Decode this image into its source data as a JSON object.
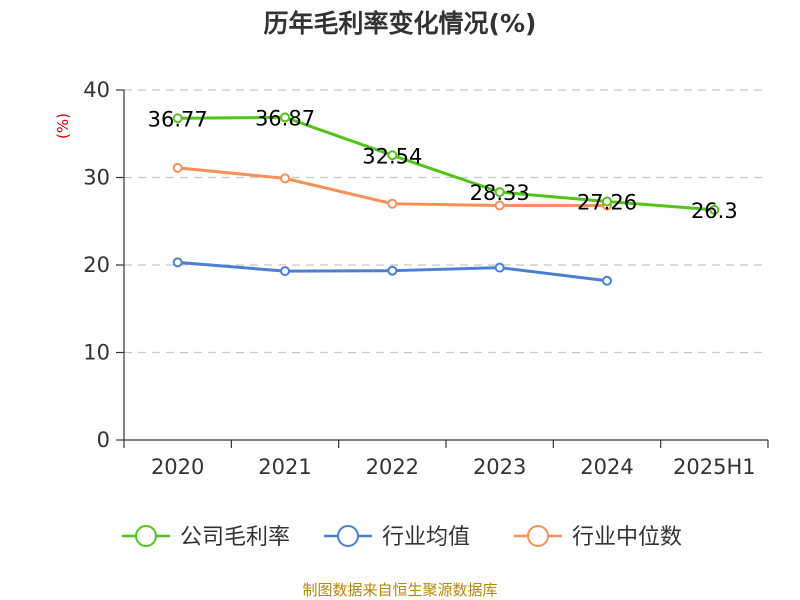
{
  "chart_data": {
    "type": "line",
    "title": "历年毛利率变化情况(%)",
    "ylabel": "(%)",
    "xlabel": "",
    "categories": [
      "2020",
      "2021",
      "2022",
      "2023",
      "2024",
      "2025H1"
    ],
    "ylim": [
      0,
      40
    ],
    "yticks": [
      "0",
      "10",
      "20",
      "30",
      "40"
    ],
    "grid": true,
    "legend_position": "bottom",
    "series": [
      {
        "name": "公司毛利率",
        "color": "#52c41a",
        "values": [
          36.77,
          36.87,
          32.54,
          28.33,
          27.26,
          26.3
        ],
        "labels": [
          "36.77",
          "36.87",
          "32.54",
          "28.33",
          "27.26",
          "26.3"
        ]
      },
      {
        "name": "行业均值",
        "color": "#4a7fd8",
        "values": [
          20.3,
          19.3,
          19.35,
          19.7,
          18.2,
          null
        ]
      },
      {
        "name": "行业中位数",
        "color": "#f7905a",
        "values": [
          31.1,
          29.9,
          27.0,
          26.8,
          26.8,
          null
        ]
      }
    ],
    "source": "制图数据来自恒生聚源数据库"
  }
}
